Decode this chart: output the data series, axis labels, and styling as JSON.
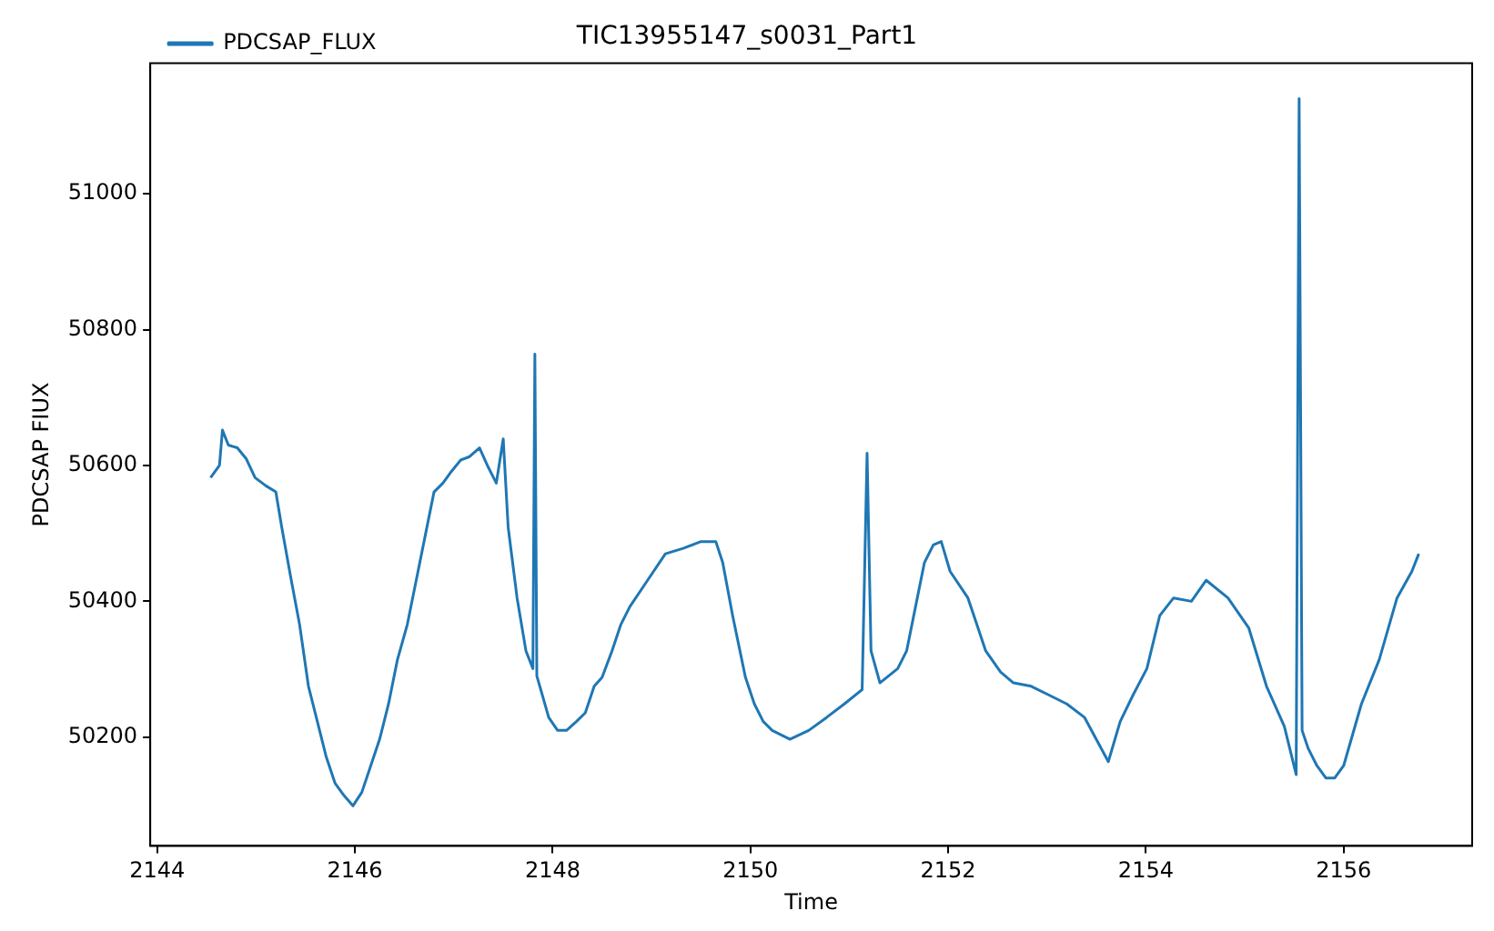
{
  "chart_data": {
    "type": "line",
    "title": "TIC13955147_s0031_Part1",
    "xlabel": "Time",
    "ylabel": "PDCSAP FIUX",
    "legend": "top left",
    "grid": false,
    "marker": "none",
    "line_style": "solid",
    "xlim": [
      2143.93,
      2157.3
    ],
    "xticks": [
      2144,
      2146,
      2148,
      2150,
      2152,
      2154,
      2156
    ],
    "ylim": [
      50040,
      51192
    ],
    "yticks": [
      50200,
      50400,
      50600,
      50800,
      51000
    ],
    "series": [
      {
        "name": "PDCSAP_FLUX",
        "color": "#1f77b4",
        "x": [
          2144.54,
          2144.63,
          2144.66,
          2144.72,
          2144.81,
          2144.9,
          2144.99,
          2145.1,
          2145.2,
          2145.26,
          2145.35,
          2145.44,
          2145.53,
          2145.62,
          2145.71,
          2145.8,
          2145.89,
          2145.98,
          2146.07,
          2146.16,
          2146.25,
          2146.34,
          2146.43,
          2146.53,
          2146.62,
          2146.71,
          2146.8,
          2146.89,
          2146.98,
          2147.07,
          2147.16,
          2147.26,
          2147.34,
          2147.43,
          2147.5,
          2147.55,
          2147.64,
          2147.73,
          2147.8,
          2147.82,
          2147.84,
          2147.87,
          2147.96,
          2148.05,
          2148.14,
          2148.24,
          2148.33,
          2148.42,
          2148.5,
          2148.6,
          2148.69,
          2148.78,
          2148.96,
          2149.14,
          2149.32,
          2149.5,
          2149.65,
          2149.72,
          2149.82,
          2149.95,
          2150.04,
          2150.13,
          2150.22,
          2150.4,
          2150.59,
          2150.77,
          2150.95,
          2151.13,
          2151.18,
          2151.22,
          2151.31,
          2151.49,
          2151.58,
          2151.67,
          2151.76,
          2151.85,
          2151.93,
          2152.02,
          2152.2,
          2152.29,
          2152.38,
          2152.53,
          2152.66,
          2152.84,
          2153.02,
          2153.2,
          2153.38,
          2153.62,
          2153.74,
          2153.87,
          2154.01,
          2154.14,
          2154.28,
          2154.46,
          2154.61,
          2154.83,
          2155.04,
          2155.22,
          2155.4,
          2155.52,
          2155.55,
          2155.58,
          2155.64,
          2155.73,
          2155.82,
          2155.91,
          2156.0,
          2156.18,
          2156.36,
          2156.54,
          2156.69,
          2156.76
        ],
        "values": [
          50582,
          50600,
          50652,
          50630,
          50626,
          50610,
          50582,
          50570,
          50561,
          50509,
          50436,
          50366,
          50275,
          50223,
          50171,
          50132,
          50114,
          50099,
          50119,
          50158,
          50197,
          50249,
          50314,
          50366,
          50431,
          50496,
          50561,
          50574,
          50592,
          50608,
          50613,
          50626,
          50600,
          50574,
          50639,
          50509,
          50405,
          50327,
          50301,
          50764,
          50290,
          50275,
          50229,
          50210,
          50210,
          50223,
          50236,
          50275,
          50288,
          50327,
          50366,
          50392,
          50431,
          50470,
          50478,
          50488,
          50488,
          50457,
          50379,
          50288,
          50249,
          50223,
          50210,
          50197,
          50210,
          50229,
          50249,
          50270,
          50618,
          50327,
          50280,
          50301,
          50327,
          50392,
          50457,
          50483,
          50488,
          50444,
          50405,
          50366,
          50327,
          50296,
          50280,
          50275,
          50262,
          50249,
          50229,
          50164,
          50223,
          50262,
          50301,
          50379,
          50405,
          50400,
          50431,
          50405,
          50361,
          50275,
          50216,
          50145,
          51140,
          50210,
          50184,
          50158,
          50140,
          50140,
          50158,
          50249,
          50314,
          50405,
          50444,
          50470
        ]
      }
    ]
  }
}
